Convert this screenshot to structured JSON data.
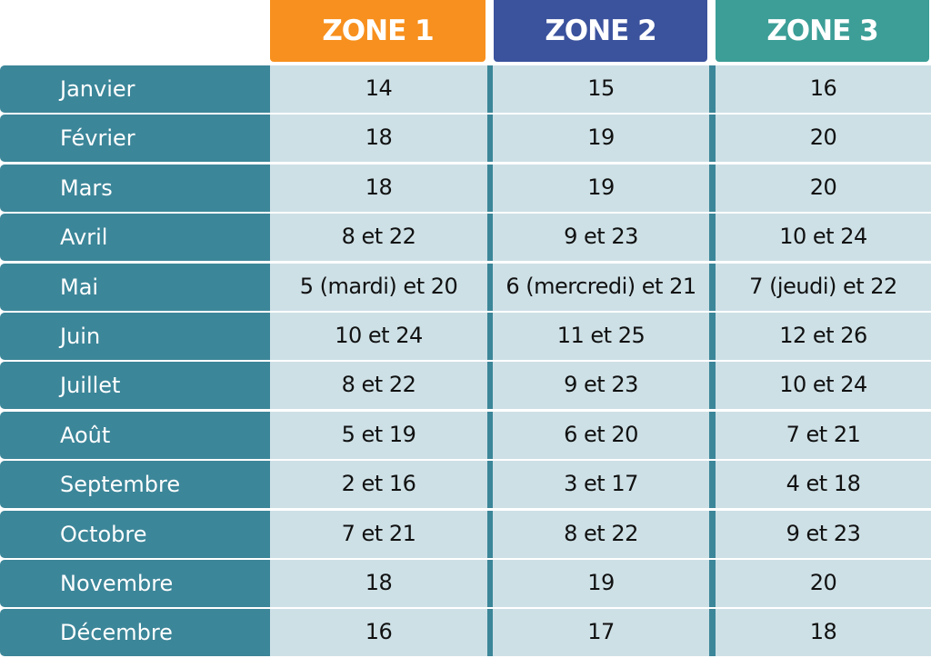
{
  "headers": [
    {
      "label": "ZONE 1",
      "color": "#f7901e"
    },
    {
      "label": "ZONE 2",
      "color": "#3b529d"
    },
    {
      "label": "ZONE 3",
      "color": "#3c9e97"
    }
  ],
  "rows": [
    {
      "month": "Janvier",
      "values": [
        "14",
        "15",
        "16"
      ]
    },
    {
      "month": "Février",
      "values": [
        "18",
        "19",
        "20"
      ]
    },
    {
      "month": "Mars",
      "values": [
        "18",
        "19",
        "20"
      ]
    },
    {
      "month": "Avril",
      "values": [
        "8 et 22",
        "9 et 23",
        "10 et 24"
      ]
    },
    {
      "month": "Mai",
      "values": [
        "5 (mardi) et 20",
        "6 (mercredi) et 21",
        "7 (jeudi) et 22"
      ]
    },
    {
      "month": "Juin",
      "values": [
        "10 et 24",
        "11 et 25",
        "12 et 26"
      ]
    },
    {
      "month": "Juillet",
      "values": [
        "8 et 22",
        "9 et 23",
        "10 et 24"
      ]
    },
    {
      "month": "Août",
      "values": [
        "5 et 19",
        "6 et 20",
        "7 et 21"
      ]
    },
    {
      "month": "Septembre",
      "values": [
        "2 et 16",
        "3 et 17",
        "4 et 18"
      ]
    },
    {
      "month": "Octobre",
      "values": [
        "7 et 21",
        "8 et 22",
        "9 et 23"
      ]
    },
    {
      "month": "Novembre",
      "values": [
        "18",
        "19",
        "20"
      ]
    },
    {
      "month": "Décembre",
      "values": [
        "16",
        "17",
        "18"
      ]
    }
  ]
}
